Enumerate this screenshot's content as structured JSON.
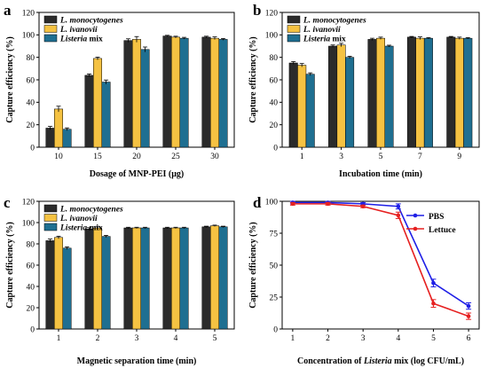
{
  "colors": {
    "s0": "#2b2b2b",
    "s1": "#f5c242",
    "s2": "#1f6f91",
    "pbs": "#1f1fe6",
    "lettuce": "#e62020"
  },
  "chart_data": [
    {
      "id": "a",
      "type": "bar",
      "panel_label": "a",
      "categories": [
        "10",
        "15",
        "20",
        "25",
        "30"
      ],
      "series": [
        {
          "name_pre": "L. monocytogenes",
          "name_post": "",
          "values": [
            17,
            64,
            95,
            99,
            98
          ],
          "errors": [
            1.5,
            1.2,
            1.5,
            0.6,
            0.8
          ]
        },
        {
          "name_pre": "L. ivanovii",
          "name_post": "",
          "values": [
            34,
            79,
            96,
            98,
            97
          ],
          "errors": [
            2.5,
            1.2,
            2.5,
            0.8,
            1.2
          ]
        },
        {
          "name_pre": "Listeria",
          "name_post": " mix",
          "values": [
            16,
            58,
            87,
            97,
            96
          ],
          "errors": [
            1.2,
            1.8,
            2.2,
            0.8,
            0.8
          ]
        }
      ],
      "xlabel": "Dosage of MNP-PEI (μg)",
      "ylabel": "Capture efficiency (%)",
      "ylim": [
        0,
        120
      ],
      "yticks": [
        "0",
        "20",
        "40",
        "60",
        "80",
        "100",
        "120"
      ],
      "legend_position": "top-left"
    },
    {
      "id": "b",
      "type": "bar",
      "panel_label": "b",
      "categories": [
        "1",
        "3",
        "5",
        "7",
        "9"
      ],
      "series": [
        {
          "name_pre": "L. monocytogenes",
          "name_post": "",
          "values": [
            75,
            90,
            96,
            98,
            98
          ],
          "errors": [
            1.2,
            1.0,
            1.0,
            0.6,
            0.6
          ]
        },
        {
          "name_pre": "L. ivanovii",
          "name_post": "",
          "values": [
            73,
            91,
            97,
            97,
            97
          ],
          "errors": [
            1.5,
            1.5,
            1.0,
            1.2,
            1.0
          ]
        },
        {
          "name_pre": "Listeria",
          "name_post": " mix",
          "values": [
            65,
            80,
            90,
            97,
            97
          ],
          "errors": [
            1.2,
            1.0,
            0.8,
            0.6,
            0.6
          ]
        }
      ],
      "xlabel": "Incubation time (min)",
      "ylabel": "Capture efficiency (%)",
      "ylim": [
        0,
        120
      ],
      "yticks": [
        "0",
        "20",
        "40",
        "60",
        "80",
        "100",
        "120"
      ],
      "legend_position": "top-left"
    },
    {
      "id": "c",
      "type": "bar",
      "panel_label": "c",
      "categories": [
        "1",
        "2",
        "3",
        "4",
        "5"
      ],
      "series": [
        {
          "name_pre": "L. monocytogenes",
          "name_post": "",
          "values": [
            83,
            94,
            95,
            95,
            96
          ],
          "errors": [
            1.5,
            1.2,
            0.6,
            0.6,
            0.6
          ]
        },
        {
          "name_pre": "L. ivanovii",
          "name_post": "",
          "values": [
            86,
            95,
            95,
            95,
            97
          ],
          "errors": [
            1.2,
            1.5,
            0.6,
            0.6,
            0.6
          ]
        },
        {
          "name_pre": "Listeria",
          "name_post": " mix",
          "values": [
            76,
            87,
            95,
            95,
            96
          ],
          "errors": [
            1.2,
            1.0,
            0.6,
            0.6,
            0.6
          ]
        }
      ],
      "xlabel": "Magnetic separation time (min)",
      "ylabel": "Capture efficiency (%)",
      "ylim": [
        0,
        120
      ],
      "yticks": [
        "0",
        "20",
        "40",
        "60",
        "80",
        "100",
        "120"
      ],
      "legend_position": "top-left"
    },
    {
      "id": "d",
      "type": "line",
      "panel_label": "d",
      "x": [
        1,
        2,
        3,
        4,
        5,
        6
      ],
      "xticks": [
        "1",
        "2",
        "3",
        "4",
        "5",
        "6"
      ],
      "series": [
        {
          "name": "PBS",
          "values": [
            99,
            99,
            98,
            96,
            36,
            18
          ],
          "errors": [
            1.0,
            1.0,
            1.0,
            2.0,
            3.0,
            2.5
          ]
        },
        {
          "name": "Lettuce",
          "values": [
            98,
            98,
            96,
            89,
            20,
            10
          ],
          "errors": [
            1.0,
            1.0,
            1.0,
            2.5,
            3.0,
            2.5
          ]
        }
      ],
      "xlabel_pre": "Concentration of ",
      "xlabel_em": "Listeria",
      "xlabel_post": " mix (log CFU/mL)",
      "ylabel": "Capture efficiency (%)",
      "ylim": [
        0,
        100
      ],
      "xlim": [
        0.7,
        6.3
      ],
      "yticks": [
        "0",
        "25",
        "50",
        "75",
        "100"
      ],
      "legend_position": "top-right"
    }
  ]
}
